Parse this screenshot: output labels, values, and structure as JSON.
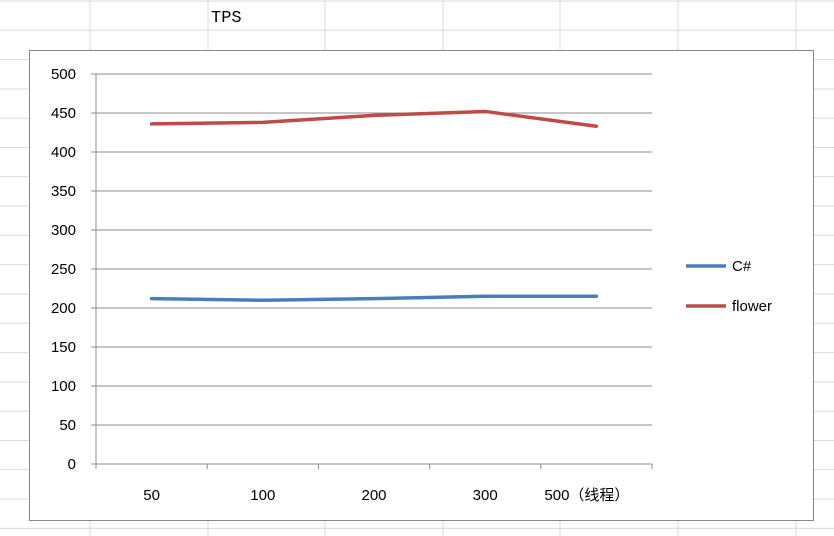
{
  "sheet_title": "TPS",
  "chart_data": {
    "type": "line",
    "title": "",
    "categories": [
      "50",
      "100",
      "200",
      "300",
      "500（线程）"
    ],
    "ylim": [
      0,
      500
    ],
    "yticks": [
      0,
      50,
      100,
      150,
      200,
      250,
      300,
      350,
      400,
      450,
      500
    ],
    "grid": true,
    "legend": "right",
    "series": [
      {
        "name": "C#",
        "color": "#4a7ebb",
        "values": [
          212,
          210,
          212,
          215,
          215
        ]
      },
      {
        "name": "flower",
        "color": "#be4b48",
        "values": [
          436,
          438,
          447,
          452,
          433
        ]
      }
    ]
  }
}
